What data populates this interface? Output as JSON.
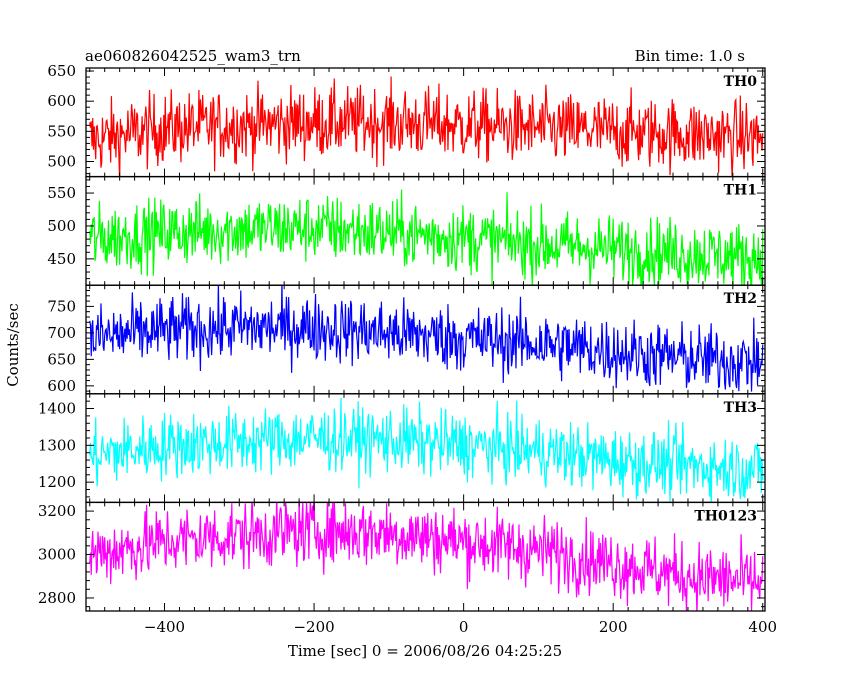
{
  "header": {
    "title": "ae060826042525_wam3_trn",
    "bin_time": "Bin time: 1.0 s"
  },
  "chart_data": {
    "type": "line",
    "title": "ae060826042525_wam3_trn",
    "subtitle": "Bin time: 1.0 s",
    "xlabel": "Time [sec] 0 = 2006/08/26 04:25:25",
    "ylabel": "Counts/sec",
    "xlim": [
      -505,
      403
    ],
    "x_ticks": [
      -400,
      -200,
      0,
      200,
      400
    ],
    "x_range_data": [
      -500,
      400
    ],
    "grid": false,
    "series": [
      {
        "name": "TH0",
        "color": "#ff0000",
        "ylim": [
          475,
          655
        ],
        "yticks": [
          500,
          550,
          600,
          650
        ],
        "trend": [
          [
            -500,
            535
          ],
          [
            -400,
            555
          ],
          [
            -300,
            560
          ],
          [
            -200,
            565
          ],
          [
            -100,
            565
          ],
          [
            0,
            560
          ],
          [
            100,
            555
          ],
          [
            200,
            550
          ],
          [
            300,
            545
          ],
          [
            400,
            540
          ]
        ],
        "noise": 30
      },
      {
        "name": "TH1",
        "color": "#00ff00",
        "ylim": [
          410,
          575
        ],
        "yticks": [
          450,
          500,
          550
        ],
        "trend": [
          [
            -500,
            480
          ],
          [
            -400,
            490
          ],
          [
            -300,
            495
          ],
          [
            -200,
            497
          ],
          [
            -100,
            490
          ],
          [
            0,
            482
          ],
          [
            100,
            472
          ],
          [
            200,
            465
          ],
          [
            300,
            458
          ],
          [
            400,
            452
          ]
        ],
        "noise": 26
      },
      {
        "name": "TH2",
        "color": "#0000ff",
        "ylim": [
          585,
          790
        ],
        "yticks": [
          600,
          650,
          700,
          750
        ],
        "trend": [
          [
            -500,
            690
          ],
          [
            -400,
            705
          ],
          [
            -300,
            710
          ],
          [
            -200,
            710
          ],
          [
            -100,
            700
          ],
          [
            0,
            690
          ],
          [
            100,
            680
          ],
          [
            200,
            665
          ],
          [
            300,
            652
          ],
          [
            400,
            645
          ]
        ],
        "noise": 32
      },
      {
        "name": "TH3",
        "color": "#00ffff",
        "ylim": [
          1145,
          1440
        ],
        "yticks": [
          1200,
          1300,
          1400
        ],
        "trend": [
          [
            -500,
            1270
          ],
          [
            -400,
            1300
          ],
          [
            -300,
            1310
          ],
          [
            -200,
            1320
          ],
          [
            -100,
            1315
          ],
          [
            0,
            1300
          ],
          [
            100,
            1285
          ],
          [
            200,
            1260
          ],
          [
            300,
            1245
          ],
          [
            400,
            1235
          ]
        ],
        "noise": 45
      },
      {
        "name": "TH0123",
        "color": "#ff00ff",
        "ylim": [
          2740,
          3240
        ],
        "yticks": [
          2800,
          3000,
          3200
        ],
        "trend": [
          [
            -500,
            3000
          ],
          [
            -400,
            3060
          ],
          [
            -300,
            3090
          ],
          [
            -200,
            3110
          ],
          [
            -100,
            3100
          ],
          [
            0,
            3060
          ],
          [
            100,
            3020
          ],
          [
            200,
            2960
          ],
          [
            300,
            2900
          ],
          [
            400,
            2870
          ]
        ],
        "noise": 80
      }
    ]
  }
}
